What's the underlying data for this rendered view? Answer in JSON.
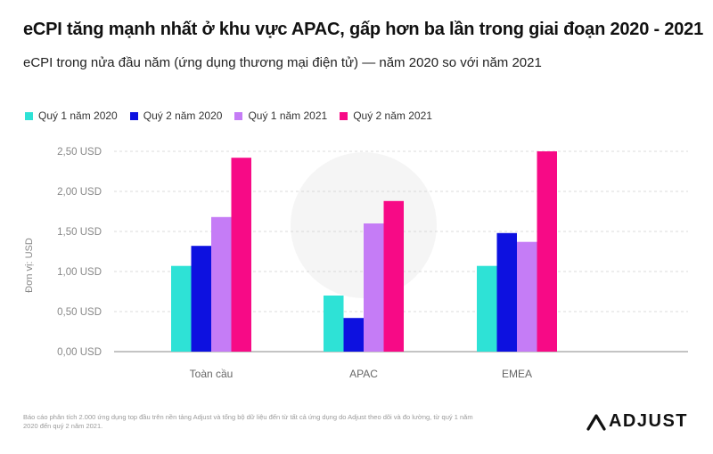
{
  "header": {
    "title": "eCPI tăng mạnh nhất ở khu vực APAC, gấp hơn ba lần trong giai đoạn 2020 - 2021",
    "subtitle": "eCPI trong nửa đầu năm (ứng dụng thương mại điện tử) — năm 2020 so với năm 2021"
  },
  "chart_data": {
    "type": "bar",
    "title": "eCPI tăng mạnh nhất ở khu vực APAC, gấp hơn ba lần trong giai đoạn 2020 - 2021",
    "subtitle": "eCPI trong nửa đầu năm (ứng dụng thương mại điện tử) — năm 2020 so với năm 2021",
    "categories": [
      "Toàn cầu",
      "APAC",
      "EMEA"
    ],
    "series": [
      {
        "name": "Quý 1 năm 2020",
        "color": "#2ee2d6",
        "values": [
          1.07,
          0.7,
          1.07
        ]
      },
      {
        "name": "Quý 2 năm 2020",
        "color": "#0d11e0",
        "values": [
          1.32,
          0.42,
          1.48
        ]
      },
      {
        "name": "Quý 1 năm 2021",
        "color": "#c57cf6",
        "values": [
          1.68,
          1.6,
          1.37
        ]
      },
      {
        "name": "Quý 2 năm 2021",
        "color": "#f70a86",
        "values": [
          2.42,
          1.88,
          2.5
        ]
      }
    ],
    "ylim": [
      0,
      2.5
    ],
    "yticks": [
      0,
      0.5,
      1.0,
      1.5,
      2.0,
      2.5
    ],
    "ytick_labels": [
      "0,00 USD",
      "0,50 USD",
      "1,00 USD",
      "1,50 USD",
      "2,00 USD",
      "2,50 USD"
    ],
    "ylabel": "Đơn vị: USD",
    "xlabel": "",
    "grid": true,
    "legend_position": "top-left"
  },
  "footnote": "Báo cáo phân tích 2.000 ứng dụng top đầu trên nền tảng Adjust và tổng bộ dữ liệu đến từ tất cả ứng dụng do Adjust theo dõi và đo lường, từ quý 1 năm 2020 đến quý 2 năm 2021.",
  "brand": {
    "name": "ADJUST",
    "logo_icon": "adjust-a-logo-icon"
  }
}
